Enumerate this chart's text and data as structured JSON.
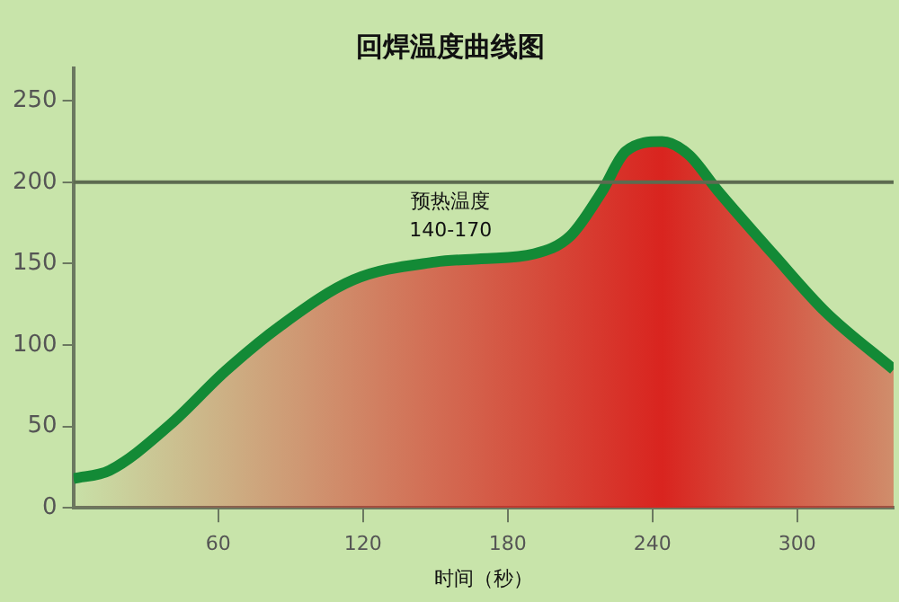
{
  "chart_data": {
    "type": "area",
    "title": "回焊温度曲线图",
    "xlabel": "时间（秒）",
    "x": [
      0,
      15,
      40,
      63,
      86,
      116,
      150,
      169,
      191,
      206,
      219,
      229,
      244,
      255,
      267,
      290,
      312,
      340
    ],
    "series": [
      {
        "color": "#138a36",
        "values": [
          18,
          23,
          51,
          84,
          112,
          140,
          151,
          153,
          156,
          167,
          194,
          219,
          225,
          217,
          195,
          156,
          120,
          85
        ]
      }
    ],
    "xlim": [
      0,
      340
    ],
    "xticks": [
      60,
      120,
      180,
      240,
      300
    ],
    "ylim": [
      0,
      270
    ],
    "yticks": [
      0,
      50,
      100,
      150,
      200,
      250
    ],
    "ref_lines": [
      {
        "axis": "y",
        "value": 200,
        "color": "#5d6b50"
      }
    ],
    "annotations": [
      "预热温度\n140-170"
    ],
    "grid": false,
    "legend": false
  }
}
